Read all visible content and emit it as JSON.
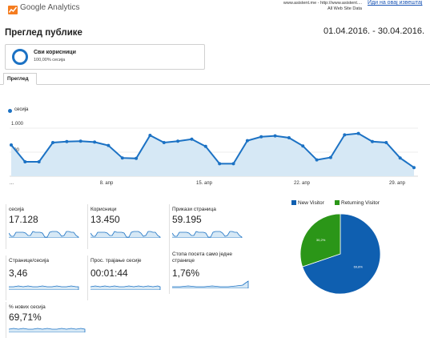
{
  "header": {
    "logo_text": "Google Analytics",
    "site_line1": "www.asistent.me - http://www.asistent....",
    "site_line2": "All Web Site Data",
    "report_link": "Иди на овај извештај"
  },
  "page": {
    "title": "Преглед публике",
    "date_range": "01.04.2016. - 30.04.2016."
  },
  "segment": {
    "name": "Сви корисници",
    "percent": "100,00% сесија"
  },
  "tabs": [
    {
      "label": "Преглед"
    }
  ],
  "chart_data": [
    {
      "type": "area",
      "legend": "сесија",
      "ytick_labels": [
        "1.000",
        "500"
      ],
      "ylim": [
        0,
        1100
      ],
      "xtick_labels": [
        "...",
        "8. апр",
        "15. апр",
        "22. апр",
        "29. апр"
      ],
      "x": [
        1,
        2,
        3,
        4,
        5,
        6,
        7,
        8,
        9,
        10,
        11,
        12,
        13,
        14,
        15,
        16,
        17,
        18,
        19,
        20,
        21,
        22,
        23,
        24,
        25,
        26,
        27,
        28,
        29,
        30
      ],
      "series": [
        {
          "name": "сесија",
          "values": [
            650,
            300,
            300,
            700,
            720,
            730,
            710,
            640,
            380,
            370,
            850,
            700,
            730,
            770,
            620,
            260,
            260,
            740,
            820,
            840,
            800,
            630,
            340,
            390,
            860,
            890,
            720,
            700,
            380,
            180
          ]
        }
      ]
    },
    {
      "type": "pie",
      "series": [
        {
          "name": "New Visitor",
          "value": 69.8,
          "label": "69,8%",
          "color": "#0f5fb0"
        },
        {
          "name": "Returning Visitor",
          "value": 30.2,
          "label": "30,2%",
          "color": "#2b9618"
        }
      ]
    }
  ],
  "metrics": [
    {
      "label": "сесија",
      "value": "17.128"
    },
    {
      "label": "Корисници",
      "value": "13.450"
    },
    {
      "label": "Прикази страница",
      "value": "59.195"
    },
    {
      "label": "Странице/сесија",
      "value": "3,46"
    },
    {
      "label": "Прос. трајање сесије",
      "value": "00:01:44"
    },
    {
      "label": "Стопа посета само једне странице",
      "value": "1,76%"
    },
    {
      "label": "% нових сесија",
      "value": "69,71%"
    }
  ],
  "colors": {
    "accent": "#1c72c4",
    "new_visitor": "#0f5fb0",
    "returning_visitor": "#2b9618"
  },
  "icons": {
    "logo": "analytics-logo-icon"
  }
}
